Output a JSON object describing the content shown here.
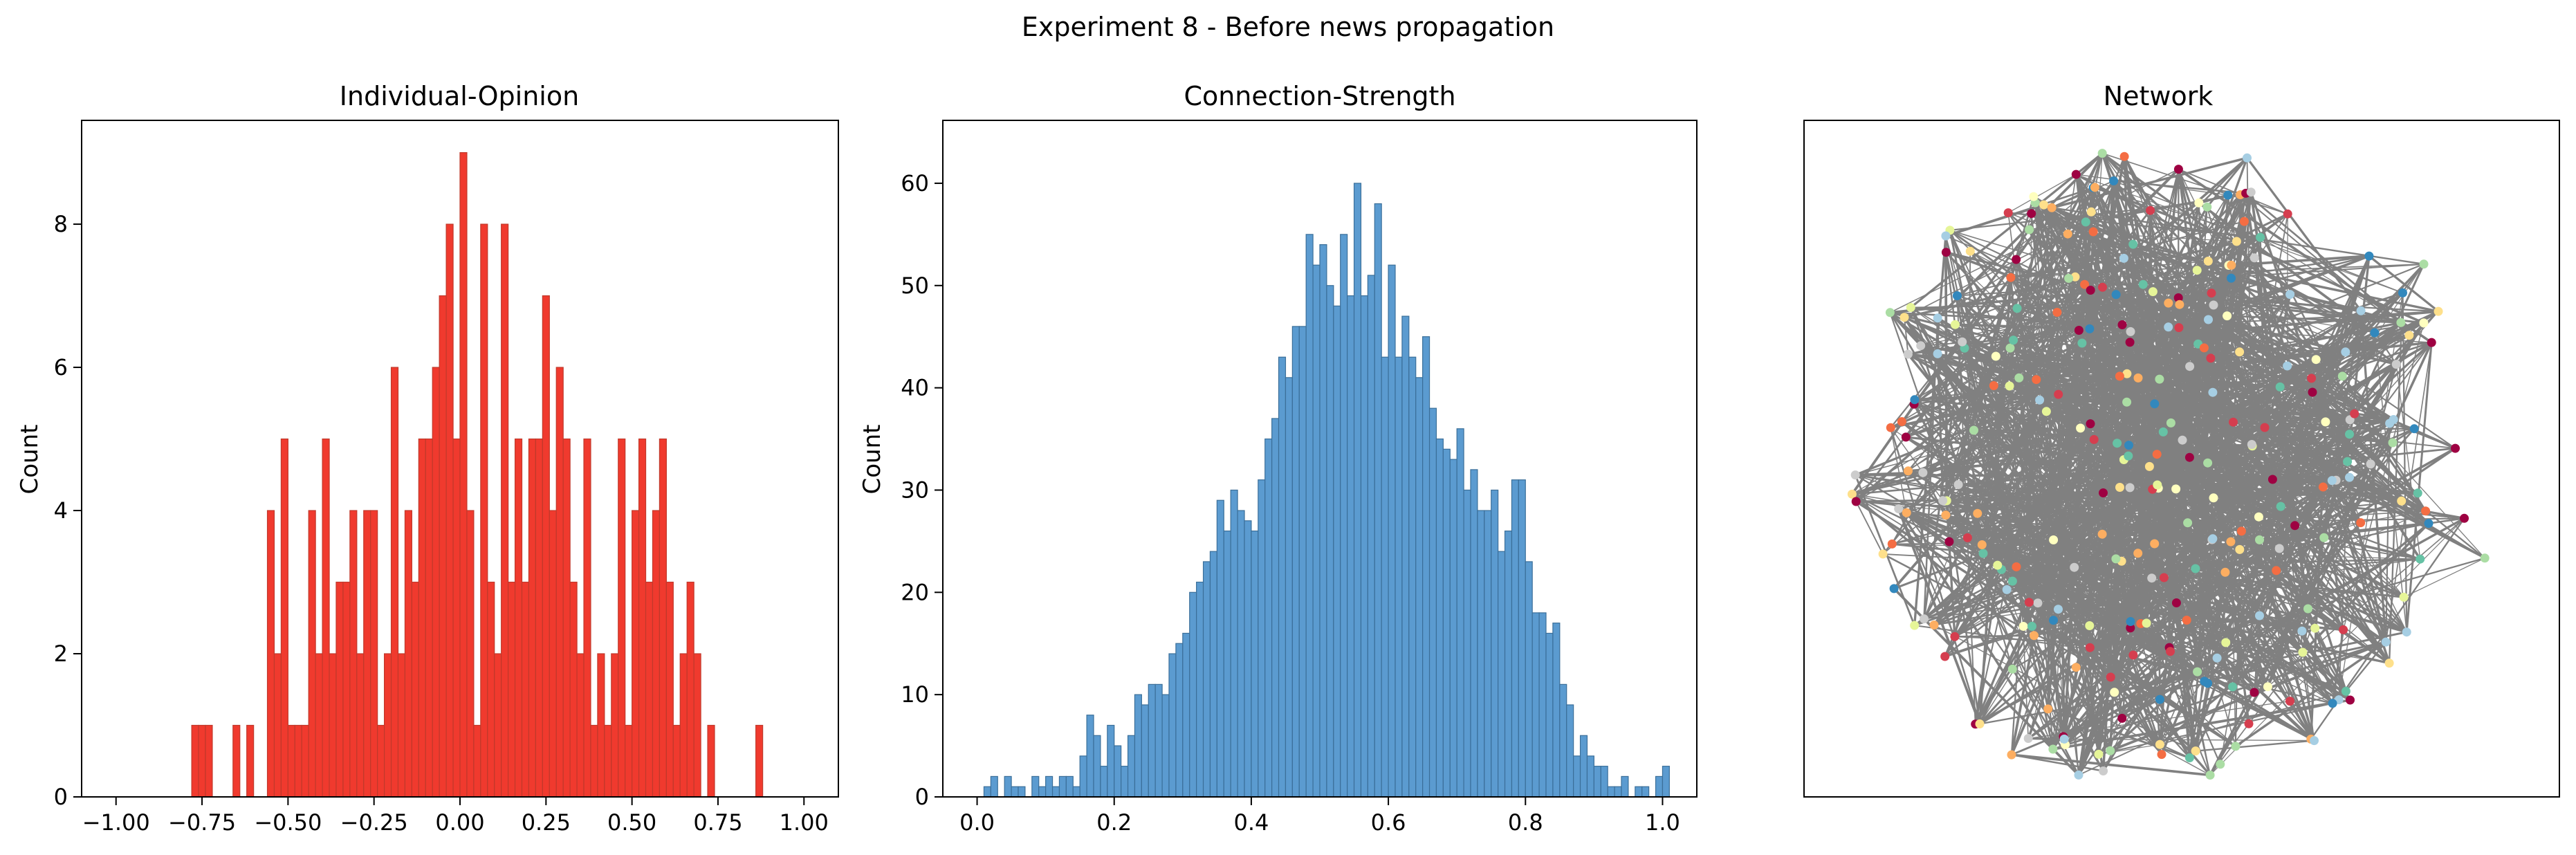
{
  "figure": {
    "suptitle": "Experiment 8 - Before news propagation"
  },
  "chart_data": [
    {
      "type": "bar",
      "title": "Individual-Opinion",
      "xlabel": "",
      "ylabel": "Count",
      "xlim": [
        -1.1,
        1.1
      ],
      "ylim": [
        0,
        9.45
      ],
      "xticks": [
        -1.0,
        -0.75,
        -0.5,
        -0.25,
        0.0,
        0.25,
        0.5,
        0.75,
        1.0
      ],
      "xtick_labels": [
        "−1.00",
        "−0.75",
        "−0.50",
        "−0.25",
        "0.00",
        "0.25",
        "0.50",
        "0.75",
        "1.00"
      ],
      "yticks": [
        0,
        2,
        4,
        6,
        8
      ],
      "ytick_labels": [
        "0",
        "2",
        "4",
        "6",
        "8"
      ],
      "bar_color": "#f03a2e",
      "edge_color": "#c0392b",
      "x_start": -1.0,
      "bin_width": 0.02,
      "values": [
        0,
        0,
        0,
        0,
        0,
        0,
        0,
        0,
        0,
        0,
        0,
        1,
        1,
        1,
        0,
        0,
        0,
        1,
        0,
        1,
        0,
        0,
        4,
        2,
        5,
        1,
        1,
        1,
        4,
        2,
        5,
        2,
        3,
        3,
        4,
        2,
        4,
        4,
        1,
        2,
        6,
        2,
        4,
        3,
        5,
        5,
        6,
        7,
        8,
        5,
        9,
        4,
        1,
        8,
        3,
        2,
        8,
        3,
        5,
        3,
        5,
        5,
        7,
        4,
        6,
        5,
        3,
        2,
        5,
        1,
        2,
        1,
        2,
        5,
        1,
        4,
        5,
        3,
        4,
        5,
        3,
        1,
        2,
        3,
        2,
        0,
        1,
        0,
        0,
        0,
        0,
        0,
        0,
        1,
        0,
        0,
        0,
        0,
        0,
        0,
        0
      ]
    },
    {
      "type": "bar",
      "title": "Connection-Strength",
      "xlabel": "",
      "ylabel": "Count",
      "xlim": [
        -0.05,
        1.05
      ],
      "ylim": [
        0,
        66.15
      ],
      "xticks": [
        0.0,
        0.2,
        0.4,
        0.6,
        0.8,
        1.0
      ],
      "xtick_labels": [
        "0.0",
        "0.2",
        "0.4",
        "0.6",
        "0.8",
        "1.0"
      ],
      "yticks": [
        0,
        10,
        20,
        30,
        40,
        50,
        60
      ],
      "ytick_labels": [
        "0",
        "10",
        "20",
        "30",
        "40",
        "50",
        "60"
      ],
      "bar_color": "#5b9bd0",
      "edge_color": "#3b6f99",
      "x_start": 0.0,
      "bin_width": 0.01,
      "values": [
        0,
        1,
        2,
        0,
        2,
        1,
        1,
        0,
        2,
        1,
        2,
        1,
        2,
        2,
        1,
        4,
        8,
        6,
        3,
        7,
        5,
        3,
        6,
        10,
        9,
        11,
        11,
        10,
        14,
        15,
        16,
        20,
        21,
        23,
        24,
        29,
        26,
        30,
        28,
        27,
        26,
        31,
        35,
        37,
        43,
        41,
        46,
        46,
        55,
        52,
        54,
        50,
        48,
        55,
        49,
        60,
        49,
        51,
        58,
        43,
        52,
        43,
        47,
        43,
        41,
        45,
        38,
        35,
        34,
        33,
        36,
        30,
        32,
        28,
        28,
        30,
        24,
        26,
        31,
        31,
        23,
        18,
        18,
        16,
        17,
        11,
        9,
        4,
        6,
        4,
        3,
        3,
        1,
        1,
        2,
        0,
        1,
        1,
        0,
        2,
        3
      ]
    },
    {
      "type": "network",
      "title": "Network",
      "edge_color": "#808080",
      "node_palette": [
        "#9e0142",
        "#d53e4f",
        "#f46d43",
        "#fdae61",
        "#fee08b",
        "#ffffbf",
        "#e6f598",
        "#abdda4",
        "#66c2a5",
        "#3288bd",
        "#a6cee3",
        "#cccccc"
      ]
    }
  ]
}
